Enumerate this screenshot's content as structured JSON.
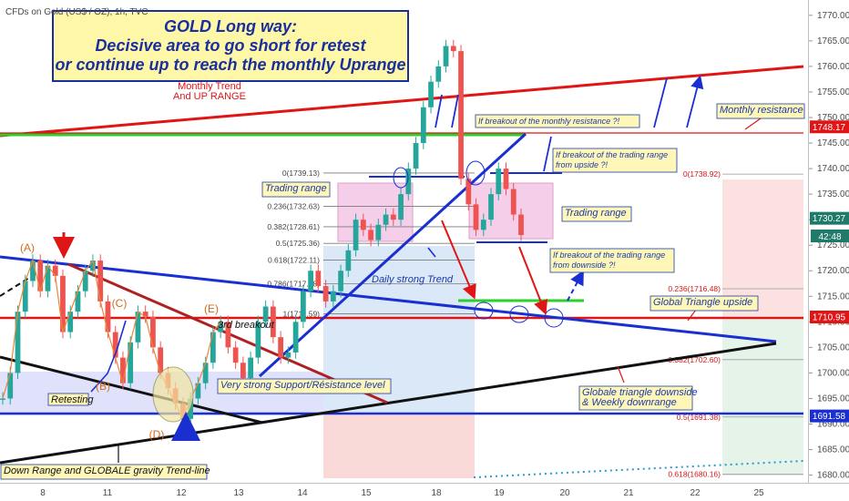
{
  "header": {
    "symbol_line": "CFDs on Gold (US$ / OZ), 1h, TVC"
  },
  "title_box": {
    "line1": "GOLD Long way:",
    "line2": "Decisive area to go short for retest",
    "line3": "or continue up to reach the monthly Uprange"
  },
  "price_scale": {
    "countdown": "42:48"
  },
  "chart_data": {
    "type": "line",
    "instrument": "CFDs on Gold (US$ / OZ)",
    "timeframe": "1h",
    "x_tick_labels": [
      "8",
      "11",
      "12",
      "13",
      "14",
      "15",
      "18",
      "19",
      "20",
      "21",
      "22",
      "25"
    ],
    "y_tick_values": [
      1680,
      1685,
      1690,
      1695,
      1700,
      1705,
      1710,
      1715,
      1720,
      1725,
      1730,
      1735,
      1740,
      1745,
      1750,
      1755,
      1760,
      1765,
      1770
    ],
    "y_tick_labels": [
      "1680.00",
      "1685.00",
      "1690.00",
      "1695.00",
      "1700.00",
      "1705.00",
      "1710.00",
      "1715.00",
      "1720.00",
      "1725.00",
      "1730.00",
      "1735.00",
      "1740.00",
      "1745.00",
      "1750.00",
      "1755.00",
      "1760.00",
      "1765.00",
      "1770.00"
    ],
    "ylim": [
      1678.5,
      1773
    ],
    "price_series": [
      1695,
      1700,
      1712,
      1718,
      1722,
      1716,
      1721,
      1719,
      1708,
      1712,
      1716,
      1720,
      1722,
      1714,
      1708,
      1703,
      1698,
      1706,
      1712,
      1711,
      1705,
      1700,
      1697,
      1694,
      1691,
      1695,
      1698,
      1702,
      1708,
      1710,
      1705,
      1702,
      1699,
      1703,
      1710,
      1713,
      1707,
      1703,
      1704,
      1710,
      1716,
      1720,
      1717,
      1714,
      1716,
      1720,
      1724,
      1730,
      1728,
      1726,
      1729,
      1731,
      1730,
      1735,
      1740,
      1745,
      1752,
      1757,
      1760,
      1764,
      1763,
      1738,
      1733,
      1728,
      1730,
      1735,
      1740,
      1736,
      1731,
      1727
    ],
    "price_labels": [
      {
        "label": "1748.17",
        "value": 1748.17,
        "color": "#e01515"
      },
      {
        "label": "1730.27",
        "value": 1730.27,
        "color": "#1f7a6a"
      },
      {
        "label": "1710.95",
        "value": 1710.95,
        "color": "#e01515"
      },
      {
        "label": "1691.58",
        "value": 1691.58,
        "color": "#1a2fd0"
      }
    ],
    "fib_left": [
      {
        "label": "0(1739.13)",
        "value": 1739.13
      },
      {
        "label": "0.236(1732.63)",
        "value": 1732.63
      },
      {
        "label": "0.382(1728.61)",
        "value": 1728.61
      },
      {
        "label": "0.5(1725.36)",
        "value": 1725.36
      },
      {
        "label": "0.618(1722.11)",
        "value": 1722.11
      },
      {
        "label": "0.786(1717.48)",
        "value": 1717.48
      },
      {
        "label": "1(1711.59)",
        "value": 1711.59
      }
    ],
    "fib_right": [
      {
        "label": "0(1738.92)",
        "value": 1738.92
      },
      {
        "label": "0.236(1716.48)",
        "value": 1716.48
      },
      {
        "label": "0.382(1702.60)",
        "value": 1702.6
      },
      {
        "label": "0.5(1691.38)",
        "value": 1691.38
      },
      {
        "label": "0.618(1680.16)",
        "value": 1680.16
      }
    ],
    "annotations": [
      {
        "id": "monthly-trend",
        "text": "Monthly Trend\nAnd UP RANGE",
        "color": "#e01515"
      },
      {
        "id": "monthly-resistance",
        "text": "Monthly resistance"
      },
      {
        "id": "breakout-monthly",
        "text": "If breakout of the monthly resistance ?!"
      },
      {
        "id": "breakout-upside",
        "text": "If breakout of the trading range\nfrom upside ?!"
      },
      {
        "id": "trading-range-left",
        "text": "Trading range"
      },
      {
        "id": "trading-range-right",
        "text": "Trading range"
      },
      {
        "id": "breakout-downside",
        "text": "If breakout of the trading range\nfrom downside ?!"
      },
      {
        "id": "daily-trend",
        "text": "Daily strong Trend"
      },
      {
        "id": "global-triangle-up",
        "text": "Global Triangle upside"
      },
      {
        "id": "third-breakout",
        "text": "3rd breakout"
      },
      {
        "id": "support-resistance",
        "text": "Very strong Support/Résistance level"
      },
      {
        "id": "global-triangle-down",
        "text": "Globale triangle downside\n& Weekly downrange"
      },
      {
        "id": "retesting",
        "text": "Retesting"
      },
      {
        "id": "down-range",
        "text": "Down Range and GLOBALE gravity Trend-line"
      }
    ],
    "wave_labels": [
      "(A)",
      "(B)",
      "(C)",
      "(D)",
      "(E)"
    ]
  }
}
